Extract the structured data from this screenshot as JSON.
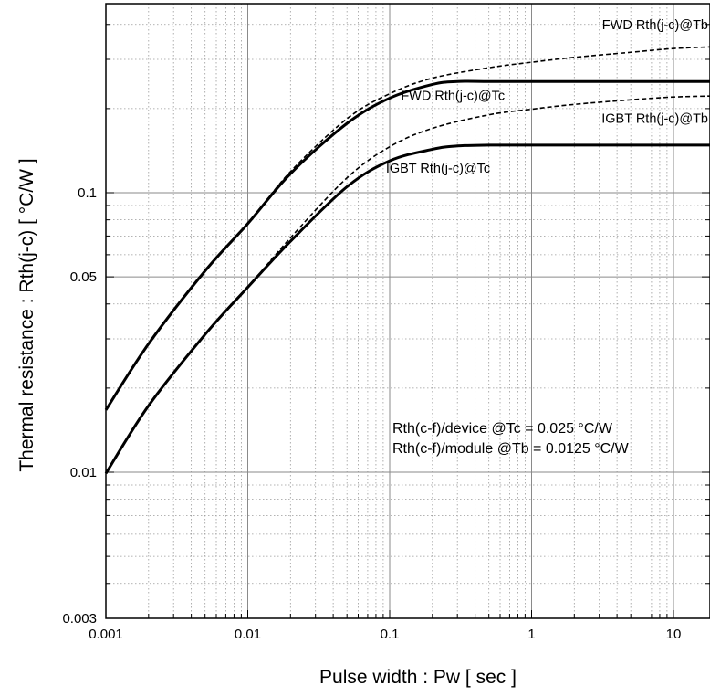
{
  "chart_data": {
    "type": "line",
    "title": "",
    "xlabel": "Pulse width  :  Pw  [ sec ]",
    "ylabel": "Thermal resistance  :  Rth(j-c)  [ °C/W ]",
    "xscale": "log",
    "yscale": "log",
    "xlim": [
      0.001,
      20
    ],
    "ylim": [
      0.003,
      0.45
    ],
    "grid": true,
    "x_tick_labels": [
      {
        "value": 0.001,
        "label": "0.001"
      },
      {
        "value": 0.01,
        "label": "0.01"
      },
      {
        "value": 0.1,
        "label": "0.1"
      },
      {
        "value": 1,
        "label": "1"
      },
      {
        "value": 10,
        "label": "10"
      }
    ],
    "y_tick_labels": [
      {
        "value": 0.003,
        "label": "0.003"
      },
      {
        "value": 0.01,
        "label": "0.01"
      },
      {
        "value": 0.05,
        "label": "0.05"
      },
      {
        "value": 0.1,
        "label": "0.1"
      }
    ],
    "series": [
      {
        "name": "FWD Rth(j-c)@Tb",
        "style": "dashed",
        "x": [
          0.001,
          0.002,
          0.005,
          0.01,
          0.02,
          0.05,
          0.1,
          0.2,
          0.5,
          1,
          2,
          5,
          10,
          20
        ],
        "y": [
          0.0167,
          0.0288,
          0.0525,
          0.0775,
          0.119,
          0.184,
          0.226,
          0.257,
          0.28,
          0.293,
          0.305,
          0.318,
          0.328,
          0.333
        ]
      },
      {
        "name": "FWD Rth(j-c)@Tc",
        "style": "solid",
        "x": [
          0.001,
          0.002,
          0.005,
          0.01,
          0.02,
          0.05,
          0.1,
          0.2,
          0.3,
          0.5,
          1,
          10,
          20
        ],
        "y": [
          0.0167,
          0.0288,
          0.0525,
          0.0775,
          0.117,
          0.177,
          0.218,
          0.244,
          0.25,
          0.25,
          0.25,
          0.25,
          0.25
        ]
      },
      {
        "name": "IGBT Rth(j-c)@Tb",
        "style": "dashed",
        "x": [
          0.001,
          0.002,
          0.005,
          0.01,
          0.02,
          0.05,
          0.1,
          0.2,
          0.5,
          1,
          2,
          5,
          10,
          20
        ],
        "y": [
          0.0099,
          0.0173,
          0.0311,
          0.0459,
          0.069,
          0.113,
          0.146,
          0.17,
          0.19,
          0.199,
          0.207,
          0.215,
          0.22,
          0.222
        ]
      },
      {
        "name": "IGBT Rth(j-c)@Tc",
        "style": "solid",
        "x": [
          0.001,
          0.002,
          0.005,
          0.01,
          0.02,
          0.05,
          0.1,
          0.2,
          0.3,
          0.5,
          1,
          10,
          20
        ],
        "y": [
          0.0099,
          0.0173,
          0.0311,
          0.0459,
          0.067,
          0.105,
          0.13,
          0.143,
          0.147,
          0.148,
          0.148,
          0.148,
          0.148
        ]
      }
    ],
    "series_labels": [
      {
        "text": "FWD Rth(j-c)@Tb",
        "anchor_x": 20,
        "anchor_y": 0.385,
        "align": "end"
      },
      {
        "text": "FWD Rth(j-c)@Tc",
        "anchor_x": 0.12,
        "anchor_y": 0.215,
        "align": "start"
      },
      {
        "text": "IGBT Rth(j-c)@Tb",
        "anchor_x": 20,
        "anchor_y": 0.178,
        "align": "end"
      },
      {
        "text": "IGBT Rth(j-c)@Tc",
        "anchor_x": 0.094,
        "anchor_y": 0.118,
        "align": "start"
      }
    ],
    "annotations": [
      "Rth(c-f)/device @Tc = 0.025 °C/W",
      "Rth(c-f)/module @Tb = 0.0125 °C/W"
    ]
  }
}
